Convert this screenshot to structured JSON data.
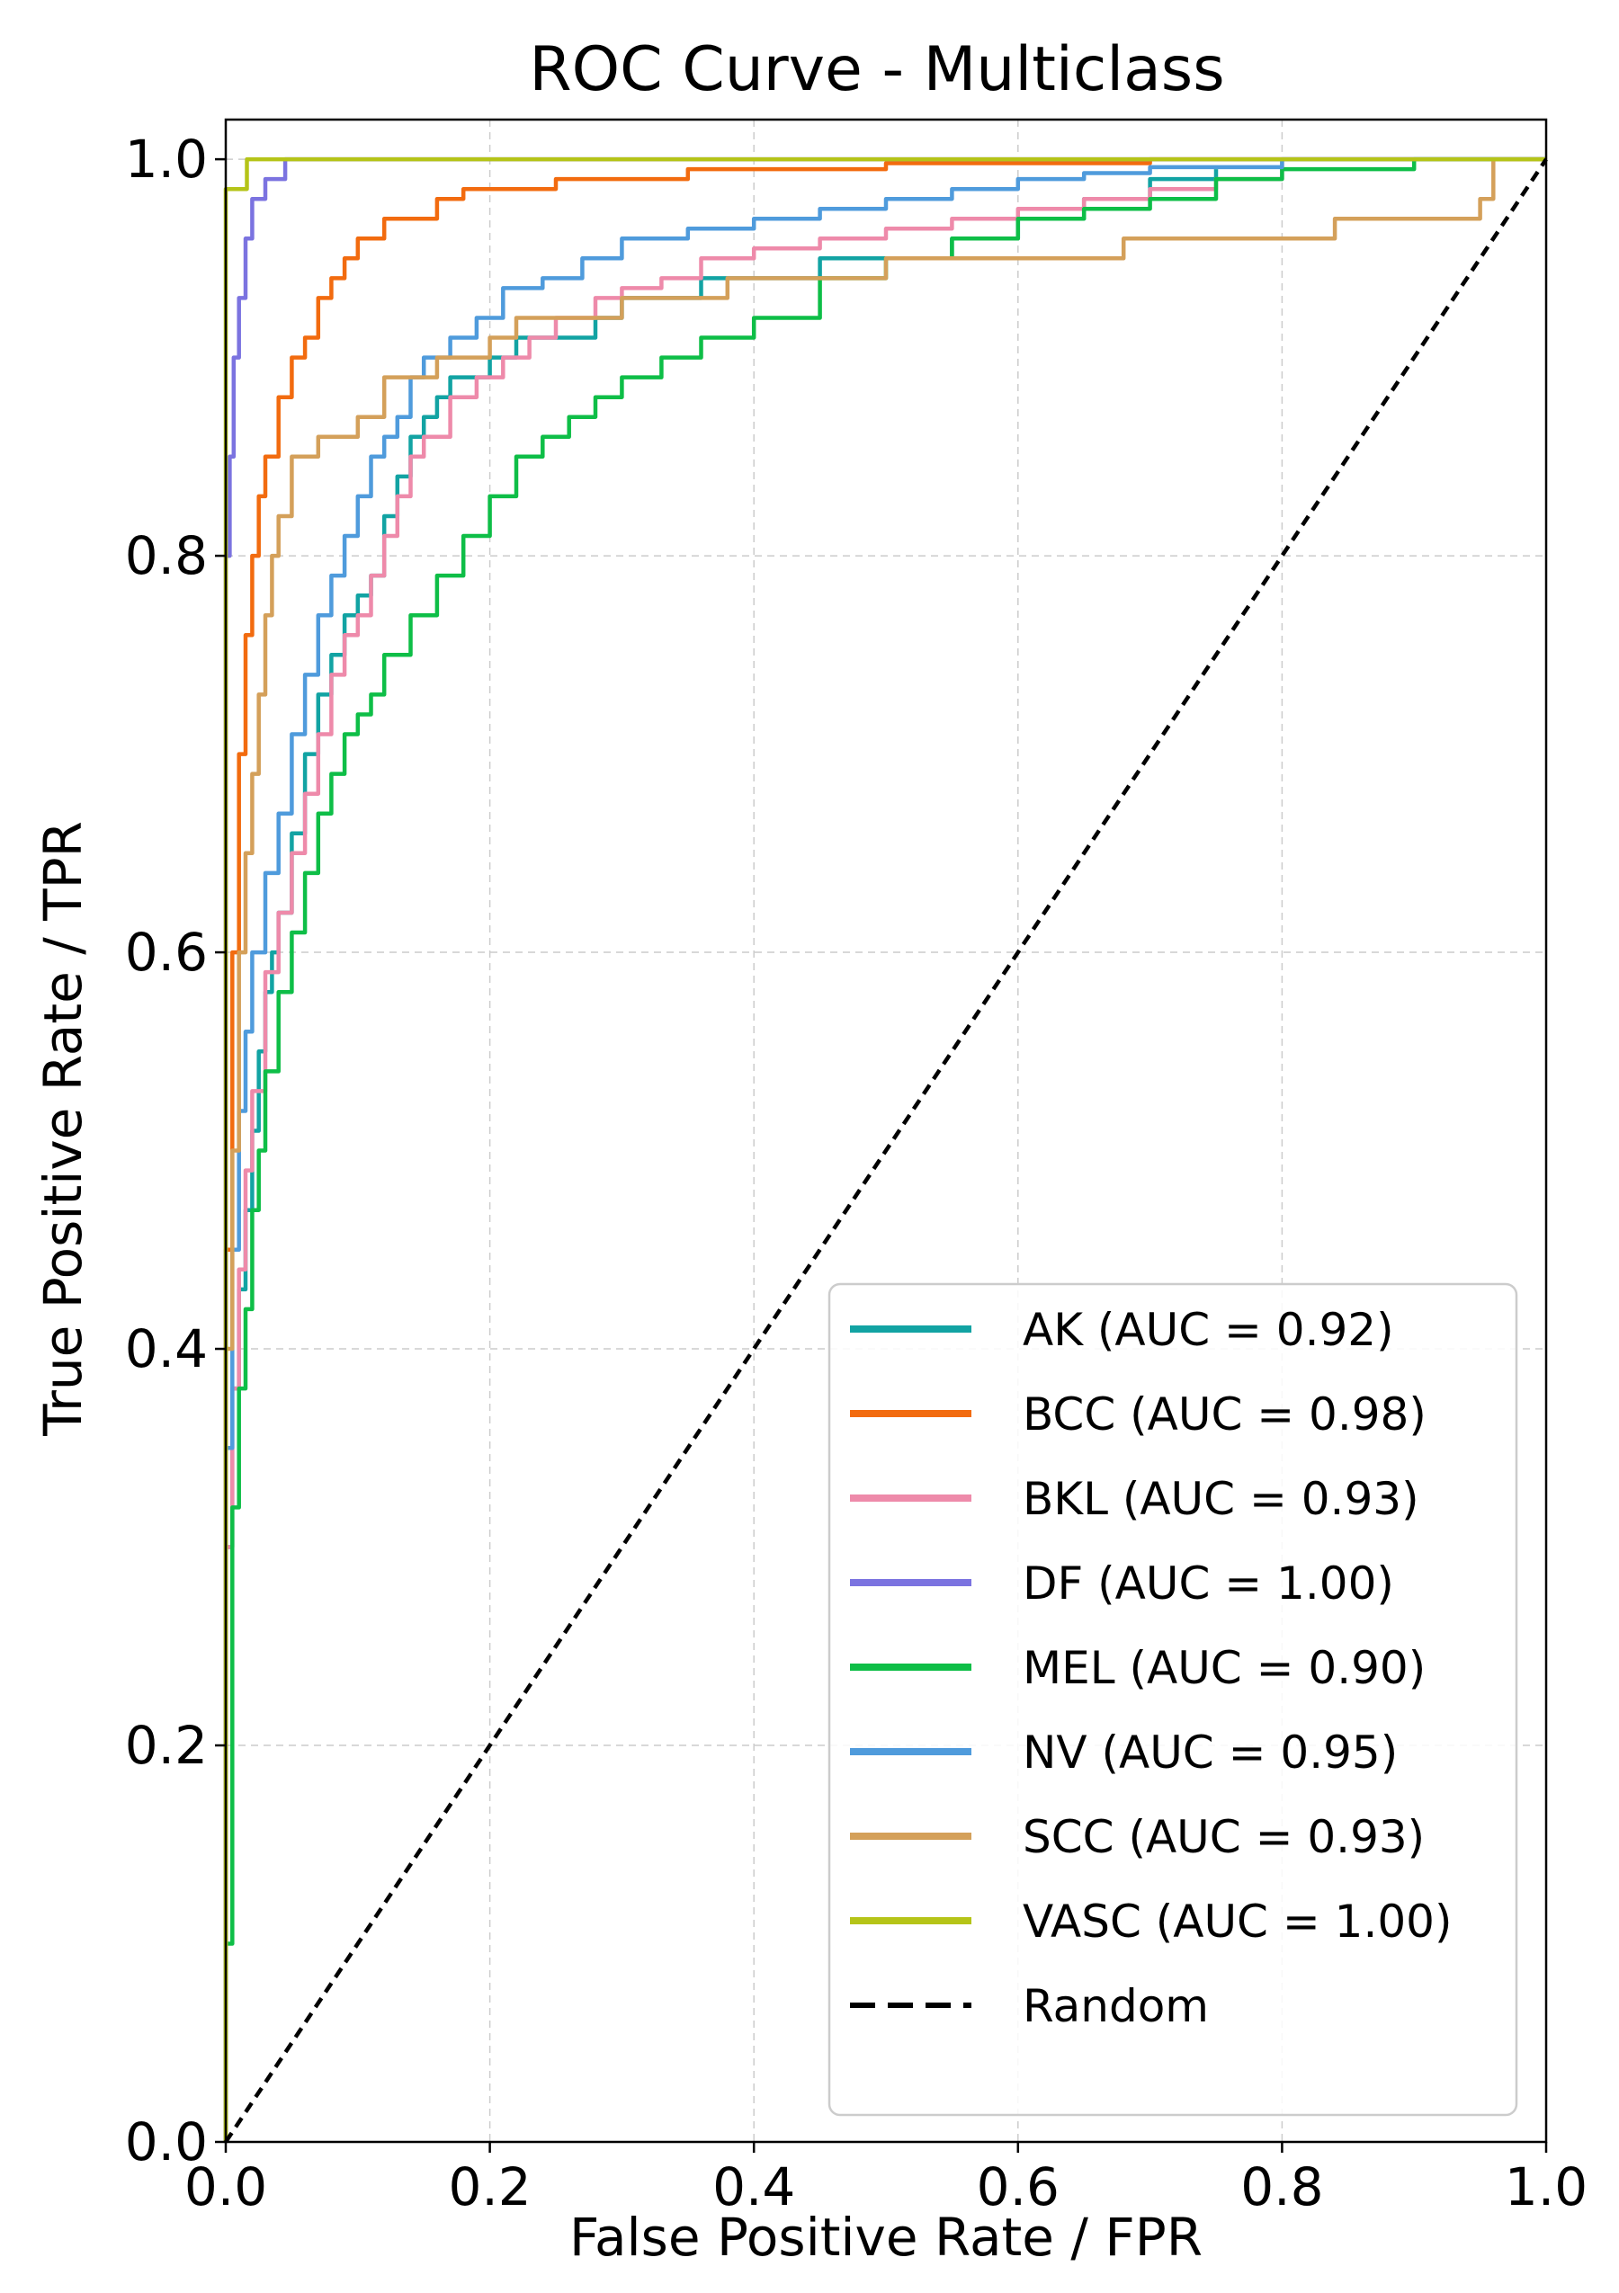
{
  "chart_data": {
    "type": "line",
    "title": "ROC Curve - Multiclass",
    "xlabel": "False Positive Rate / FPR",
    "ylabel": "True Positive Rate / TPR",
    "xlim": [
      0.0,
      1.0
    ],
    "ylim": [
      0.0,
      1.02
    ],
    "xticks": [
      "0.0",
      "0.2",
      "0.4",
      "0.6",
      "0.8",
      "1.0"
    ],
    "yticks": [
      "0.0",
      "0.2",
      "0.4",
      "0.6",
      "0.8",
      "1.0"
    ],
    "grid": true,
    "legend_position": "lower-right",
    "series": [
      {
        "name": "AK  (AUC = 0.92)",
        "color": "#12A3A3",
        "x": [
          0.0,
          0.0,
          0.005,
          0.01,
          0.015,
          0.02,
          0.025,
          0.03,
          0.035,
          0.04,
          0.05,
          0.06,
          0.07,
          0.08,
          0.09,
          0.1,
          0.11,
          0.12,
          0.13,
          0.14,
          0.15,
          0.16,
          0.17,
          0.18,
          0.2,
          0.22,
          0.25,
          0.28,
          0.3,
          0.33,
          0.36,
          0.4,
          0.45,
          0.5,
          0.55,
          0.6,
          0.65,
          0.7,
          0.75
        ],
        "y": [
          0.0,
          0.3,
          0.38,
          0.43,
          0.47,
          0.51,
          0.55,
          0.58,
          0.6,
          0.62,
          0.66,
          0.7,
          0.73,
          0.75,
          0.77,
          0.78,
          0.79,
          0.82,
          0.84,
          0.86,
          0.87,
          0.88,
          0.89,
          0.89,
          0.9,
          0.91,
          0.91,
          0.92,
          0.93,
          0.93,
          0.94,
          0.94,
          0.95,
          0.95,
          0.96,
          0.97,
          0.98,
          0.99,
          0.995
        ]
      },
      {
        "name": "BCC  (AUC = 0.98)",
        "color": "#F26B0F",
        "x": [
          0.0,
          0.0,
          0.005,
          0.01,
          0.015,
          0.02,
          0.025,
          0.03,
          0.04,
          0.05,
          0.06,
          0.07,
          0.08,
          0.09,
          0.1,
          0.12,
          0.14,
          0.16,
          0.18,
          0.2,
          0.25,
          0.3,
          0.35,
          0.4,
          0.5,
          0.56,
          0.7,
          0.85,
          1.0
        ],
        "y": [
          0.0,
          0.45,
          0.6,
          0.7,
          0.76,
          0.8,
          0.83,
          0.85,
          0.88,
          0.9,
          0.91,
          0.93,
          0.94,
          0.95,
          0.96,
          0.97,
          0.97,
          0.98,
          0.985,
          0.985,
          0.99,
          0.99,
          0.995,
          0.995,
          0.998,
          0.998,
          1.0,
          1.0,
          1.0
        ]
      },
      {
        "name": "BKL  (AUC = 0.93)",
        "color": "#EE8AAA",
        "x": [
          0.0,
          0.0,
          0.005,
          0.01,
          0.015,
          0.02,
          0.03,
          0.04,
          0.05,
          0.06,
          0.07,
          0.08,
          0.09,
          0.1,
          0.11,
          0.12,
          0.13,
          0.14,
          0.15,
          0.17,
          0.19,
          0.21,
          0.23,
          0.25,
          0.28,
          0.3,
          0.33,
          0.36,
          0.4,
          0.45,
          0.5,
          0.55,
          0.6,
          0.65,
          0.7,
          0.75,
          0.8,
          1.0
        ],
        "y": [
          0.0,
          0.3,
          0.38,
          0.44,
          0.49,
          0.53,
          0.59,
          0.62,
          0.65,
          0.68,
          0.71,
          0.74,
          0.76,
          0.77,
          0.79,
          0.81,
          0.83,
          0.85,
          0.86,
          0.88,
          0.89,
          0.9,
          0.91,
          0.92,
          0.93,
          0.935,
          0.94,
          0.95,
          0.955,
          0.96,
          0.965,
          0.97,
          0.975,
          0.98,
          0.985,
          0.99,
          1.0,
          1.0
        ]
      },
      {
        "name": "DF  (AUC = 1.00)",
        "color": "#7B73E0",
        "x": [
          0.0,
          0.0,
          0.003,
          0.006,
          0.01,
          0.015,
          0.02,
          0.03,
          0.04,
          0.045,
          0.045,
          1.0
        ],
        "y": [
          0.0,
          0.8,
          0.85,
          0.9,
          0.93,
          0.96,
          0.98,
          0.99,
          0.99,
          0.99,
          1.0,
          1.0
        ]
      },
      {
        "name": "MEL  (AUC = 0.90)",
        "color": "#0EBE47",
        "x": [
          0.0,
          0.0,
          0.005,
          0.01,
          0.015,
          0.02,
          0.025,
          0.03,
          0.04,
          0.05,
          0.06,
          0.07,
          0.08,
          0.09,
          0.1,
          0.11,
          0.12,
          0.14,
          0.16,
          0.18,
          0.2,
          0.22,
          0.24,
          0.26,
          0.28,
          0.3,
          0.33,
          0.36,
          0.4,
          0.45,
          0.5,
          0.55,
          0.6,
          0.65,
          0.7,
          0.75,
          0.8,
          0.9,
          1.0
        ],
        "y": [
          0.0,
          0.1,
          0.32,
          0.38,
          0.42,
          0.47,
          0.5,
          0.54,
          0.58,
          0.61,
          0.64,
          0.67,
          0.69,
          0.71,
          0.72,
          0.73,
          0.75,
          0.77,
          0.79,
          0.81,
          0.83,
          0.85,
          0.86,
          0.87,
          0.88,
          0.89,
          0.9,
          0.91,
          0.92,
          0.94,
          0.95,
          0.96,
          0.97,
          0.975,
          0.98,
          0.99,
          0.995,
          1.0,
          1.0
        ]
      },
      {
        "name": "NV  (AUC = 0.95)",
        "color": "#4F9BDC",
        "x": [
          0.0,
          0.0,
          0.005,
          0.01,
          0.015,
          0.02,
          0.03,
          0.04,
          0.05,
          0.06,
          0.07,
          0.08,
          0.09,
          0.1,
          0.11,
          0.12,
          0.13,
          0.14,
          0.15,
          0.17,
          0.19,
          0.21,
          0.24,
          0.27,
          0.3,
          0.35,
          0.4,
          0.45,
          0.5,
          0.55,
          0.6,
          0.65,
          0.7,
          0.8,
          1.0
        ],
        "y": [
          0.0,
          0.35,
          0.45,
          0.52,
          0.56,
          0.6,
          0.64,
          0.67,
          0.71,
          0.74,
          0.77,
          0.79,
          0.81,
          0.83,
          0.85,
          0.86,
          0.87,
          0.89,
          0.9,
          0.91,
          0.92,
          0.935,
          0.94,
          0.95,
          0.96,
          0.965,
          0.97,
          0.975,
          0.98,
          0.985,
          0.99,
          0.993,
          0.996,
          1.0,
          1.0
        ]
      },
      {
        "name": "SCC  (AUC = 0.93)",
        "color": "#D4A05A",
        "x": [
          0.0,
          0.0,
          0.005,
          0.01,
          0.015,
          0.02,
          0.025,
          0.03,
          0.035,
          0.04,
          0.05,
          0.06,
          0.07,
          0.08,
          0.09,
          0.1,
          0.12,
          0.14,
          0.16,
          0.18,
          0.2,
          0.22,
          0.26,
          0.3,
          0.34,
          0.38,
          0.42,
          0.46,
          0.5,
          0.56,
          0.62,
          0.68,
          0.74,
          0.8,
          0.84,
          0.84,
          0.92,
          0.95,
          0.96,
          0.96,
          1.0
        ],
        "y": [
          0.0,
          0.4,
          0.5,
          0.6,
          0.65,
          0.69,
          0.73,
          0.77,
          0.8,
          0.82,
          0.85,
          0.85,
          0.86,
          0.86,
          0.86,
          0.87,
          0.89,
          0.89,
          0.9,
          0.9,
          0.91,
          0.92,
          0.92,
          0.93,
          0.93,
          0.94,
          0.94,
          0.94,
          0.95,
          0.95,
          0.95,
          0.96,
          0.96,
          0.96,
          0.96,
          0.97,
          0.97,
          0.98,
          0.98,
          1.0,
          1.0
        ]
      },
      {
        "name": "VASC  (AUC = 1.00)",
        "color": "#B5C418",
        "x": [
          0.0,
          0.0,
          0.016,
          0.016,
          0.016,
          1.0
        ],
        "y": [
          0.0,
          0.985,
          0.985,
          0.985,
          1.0,
          1.0
        ]
      },
      {
        "name": "Random",
        "color": "#000000",
        "dashed": true,
        "x": [
          0.0,
          1.0
        ],
        "y": [
          0.0,
          1.0
        ]
      }
    ]
  }
}
